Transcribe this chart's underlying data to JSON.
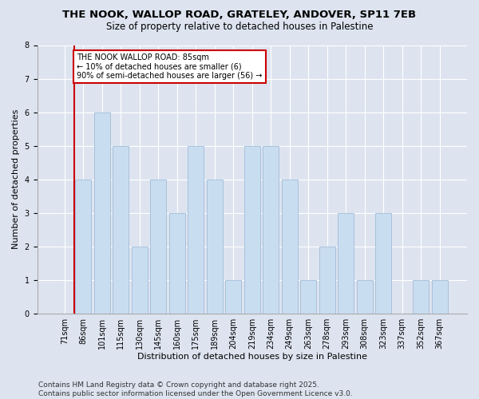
{
  "title_line1": "THE NOOK, WALLOP ROAD, GRATELEY, ANDOVER, SP11 7EB",
  "title_line2": "Size of property relative to detached houses in Palestine",
  "xlabel": "Distribution of detached houses by size in Palestine",
  "ylabel": "Number of detached properties",
  "categories": [
    "71sqm",
    "86sqm",
    "101sqm",
    "115sqm",
    "130sqm",
    "145sqm",
    "160sqm",
    "175sqm",
    "189sqm",
    "204sqm",
    "219sqm",
    "234sqm",
    "249sqm",
    "263sqm",
    "278sqm",
    "293sqm",
    "308sqm",
    "323sqm",
    "337sqm",
    "352sqm",
    "367sqm"
  ],
  "values": [
    0,
    4,
    6,
    5,
    2,
    4,
    3,
    5,
    4,
    1,
    5,
    5,
    4,
    1,
    2,
    3,
    1,
    3,
    0,
    1,
    1
  ],
  "bar_color": "#c9ddf0",
  "bar_edge_color": "#a0bcd8",
  "annotation_text": "THE NOOK WALLOP ROAD: 85sqm\n← 10% of detached houses are smaller (6)\n90% of semi-detached houses are larger (56) →",
  "annotation_box_color": "#ffffff",
  "annotation_box_edge_color": "#cc0000",
  "vline_color": "#cc0000",
  "vline_x_index": 1,
  "ylim": [
    0,
    8
  ],
  "yticks": [
    0,
    1,
    2,
    3,
    4,
    5,
    6,
    7,
    8
  ],
  "background_color": "#dde4f0",
  "plot_bg_color": "#dde4f0",
  "footer_text": "Contains HM Land Registry data © Crown copyright and database right 2025.\nContains public sector information licensed under the Open Government Licence v3.0.",
  "title_fontsize": 9.5,
  "subtitle_fontsize": 8.5,
  "axis_label_fontsize": 8,
  "tick_fontsize": 7,
  "annotation_fontsize": 7,
  "footer_fontsize": 6.5
}
